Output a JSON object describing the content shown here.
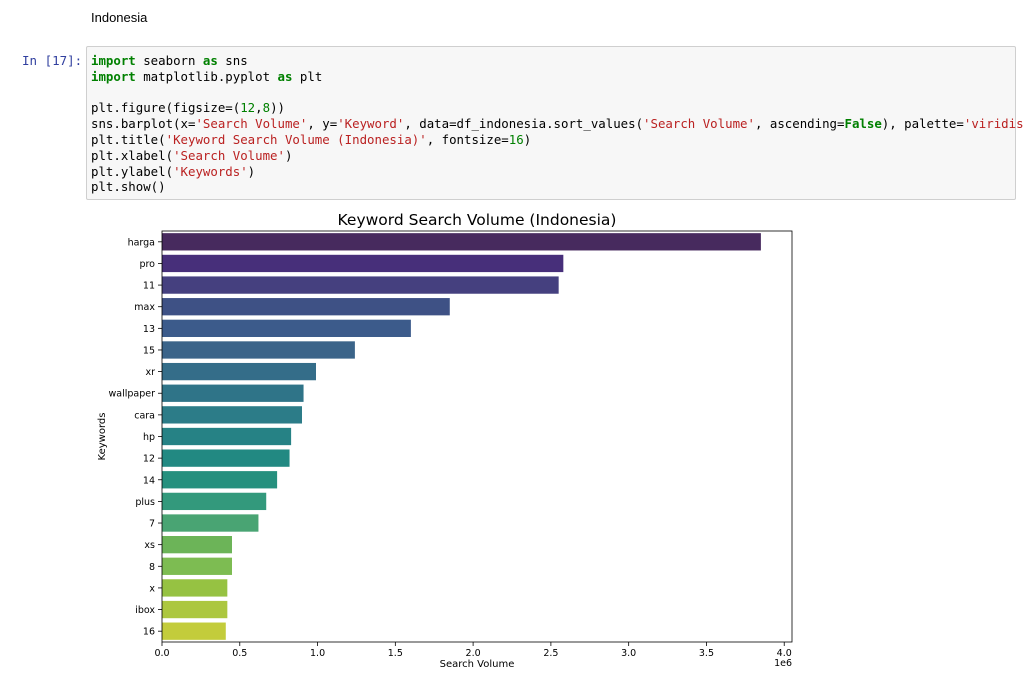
{
  "markdown": {
    "text": "Indonesia"
  },
  "cell": {
    "prompt": "In [17]:",
    "code": [
      [
        {
          "t": "import",
          "c": "kw"
        },
        {
          "t": " seaborn "
        },
        {
          "t": "as",
          "c": "kw"
        },
        {
          "t": " sns"
        }
      ],
      [
        {
          "t": "import",
          "c": "kw"
        },
        {
          "t": " matplotlib.pyplot "
        },
        {
          "t": "as",
          "c": "kw"
        },
        {
          "t": " plt"
        }
      ],
      [],
      [
        {
          "t": "plt.figure(figsize=("
        },
        {
          "t": "12",
          "c": "num"
        },
        {
          "t": ","
        },
        {
          "t": "8",
          "c": "num"
        },
        {
          "t": "))"
        }
      ],
      [
        {
          "t": "sns.barplot(x="
        },
        {
          "t": "'Search Volume'",
          "c": "str"
        },
        {
          "t": ", y="
        },
        {
          "t": "'Keyword'",
          "c": "str"
        },
        {
          "t": ", data=df_indonesia.sort_values("
        },
        {
          "t": "'Search Volume'",
          "c": "str"
        },
        {
          "t": ", ascending="
        },
        {
          "t": "False",
          "c": "kw"
        },
        {
          "t": "), palette="
        },
        {
          "t": "'viridis'",
          "c": "str"
        },
        {
          "t": ")"
        }
      ],
      [
        {
          "t": "plt.title("
        },
        {
          "t": "'Keyword Search Volume (Indonesia)'",
          "c": "str"
        },
        {
          "t": ", fontsize="
        },
        {
          "t": "16",
          "c": "num"
        },
        {
          "t": ")"
        }
      ],
      [
        {
          "t": "plt.xlabel("
        },
        {
          "t": "'Search Volume'",
          "c": "str"
        },
        {
          "t": ")"
        }
      ],
      [
        {
          "t": "plt.ylabel("
        },
        {
          "t": "'Keywords'",
          "c": "str"
        },
        {
          "t": ")"
        }
      ],
      [
        {
          "t": "plt.show()"
        }
      ]
    ]
  },
  "chart_data": {
    "type": "bar",
    "orientation": "horizontal",
    "title": "Keyword Search Volume (Indonesia)",
    "xlabel": "Search Volume",
    "ylabel": "Keywords",
    "x_offset_label": "1e6",
    "xlim": [
      0,
      4.05
    ],
    "xticks": [
      "0.0",
      "0.5",
      "1.0",
      "1.5",
      "2.0",
      "2.5",
      "3.0",
      "3.5",
      "4.0"
    ],
    "palette": "viridis",
    "categories": [
      "harga",
      "pro",
      "11",
      "max",
      "13",
      "15",
      "xr",
      "wallpaper",
      "cara",
      "hp",
      "12",
      "14",
      "plus",
      "7",
      "xs",
      "8",
      "x",
      "ibox",
      "16"
    ],
    "values": [
      3.85,
      2.58,
      2.55,
      1.85,
      1.6,
      1.24,
      0.99,
      0.91,
      0.9,
      0.83,
      0.82,
      0.74,
      0.67,
      0.62,
      0.45,
      0.45,
      0.42,
      0.42,
      0.41
    ],
    "colors": [
      "#472a5e",
      "#472f7a",
      "#45407f",
      "#3e5185",
      "#3c5b8b",
      "#3b6489",
      "#346d89",
      "#2f7488",
      "#2c7c88",
      "#268285",
      "#228982",
      "#26907e",
      "#33997c",
      "#49a473",
      "#6cb458",
      "#7dbc52",
      "#96c242",
      "#acc73f",
      "#c3cc3b"
    ]
  }
}
